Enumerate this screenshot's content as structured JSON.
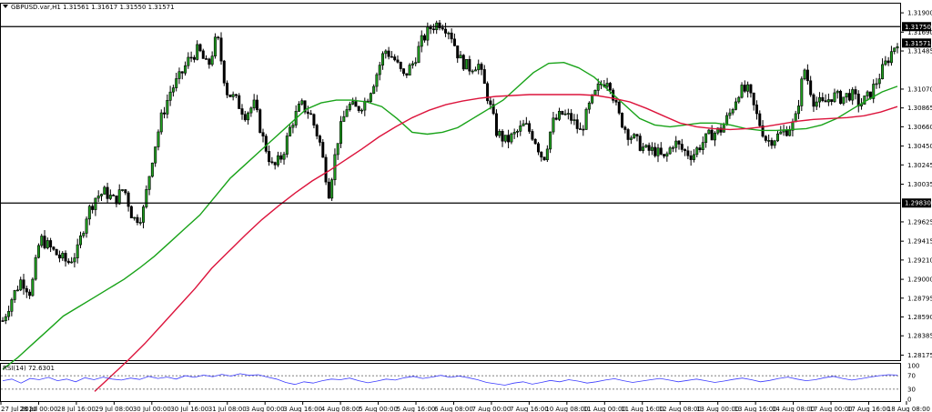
{
  "header": {
    "symbol_line": "GBPUSD.var,H1  1.31561 1.31617 1.31550 1.31571"
  },
  "indicator": {
    "label": "RSI(14) 72.6301"
  },
  "colors": {
    "background": "#ffffff",
    "candle": "#000000",
    "candle_up_body": "#1f9e1f",
    "ma_fast": "#19a319",
    "ma_slow": "#dc143c",
    "rsi_line": "#3b3bff",
    "hline": "#000000"
  },
  "chart_data": {
    "type": "candlestick",
    "price_axis": {
      "ticks": [
        "1.31900",
        "1.31690",
        "1.31485",
        "1.31070",
        "1.30865",
        "1.30660",
        "1.30450",
        "1.30245",
        "1.30035",
        "1.29625",
        "1.29415",
        "1.29210",
        "1.29000",
        "1.28795",
        "1.28590",
        "1.28385",
        "1.28175"
      ],
      "range": [
        1.2812,
        1.32
      ]
    },
    "horizontal_lines": [
      {
        "price": 1.3175,
        "label": "1.31750"
      },
      {
        "price": 1.2983,
        "label": "1.29830"
      }
    ],
    "last_price": {
      "value": 1.31571,
      "label": "1.31571"
    },
    "time_axis": {
      "labels": [
        "27 Jul 2020",
        "28 Jul 00:00",
        "28 Jul 16:00",
        "29 Jul 08:00",
        "30 Jul 00:00",
        "30 Jul 16:00",
        "31 Jul 08:00",
        "3 Aug 00:00",
        "3 Aug 16:00",
        "4 Aug 08:00",
        "5 Aug 00:00",
        "5 Aug 16:00",
        "6 Aug 08:00",
        "7 Aug 00:00",
        "7 Aug 16:00",
        "10 Aug 08:00",
        "11 Aug 00:00",
        "11 Aug 16:00",
        "12 Aug 08:00",
        "13 Aug 00:00",
        "13 Aug 16:00",
        "14 Aug 08:00",
        "17 Aug 00:00",
        "17 Aug 16:00",
        "18 Aug 08:00"
      ]
    },
    "close_path": [
      1.2855,
      1.288,
      1.29,
      1.2885,
      1.2945,
      1.2935,
      1.2925,
      1.2918,
      1.293,
      1.297,
      1.299,
      1.2995,
      1.2985,
      1.3,
      1.2965,
      1.297,
      1.303,
      1.3075,
      1.3105,
      1.312,
      1.314,
      1.315,
      1.313,
      1.3165,
      1.3105,
      1.3095,
      1.308,
      1.309,
      1.305,
      1.302,
      1.3035,
      1.307,
      1.309,
      1.308,
      1.305,
      1.2995,
      1.3055,
      1.309,
      1.3085,
      1.3095,
      1.312,
      1.315,
      1.314,
      1.312,
      1.3135,
      1.316,
      1.3175,
      1.318,
      1.317,
      1.314,
      1.313,
      1.3135,
      1.31,
      1.306,
      1.305,
      1.3058,
      1.3068,
      1.3055,
      1.303,
      1.307,
      1.308,
      1.3075,
      1.306,
      1.309,
      1.311,
      1.312,
      1.308,
      1.306,
      1.305,
      1.304,
      1.304,
      1.303,
      1.305,
      1.304,
      1.3035,
      1.3048,
      1.3058,
      1.3062,
      1.308,
      1.3105,
      1.3105,
      1.3075,
      1.305,
      1.3055,
      1.3062,
      1.307,
      1.313,
      1.3095,
      1.309,
      1.31,
      1.3097,
      1.3102,
      1.309,
      1.31,
      1.312,
      1.314,
      1.316
    ],
    "ma_fast": [
      1.2802,
      1.2815,
      1.283,
      1.2845,
      1.286,
      1.287,
      1.288,
      1.289,
      1.29,
      1.2912,
      1.2925,
      1.294,
      1.2955,
      1.297,
      1.299,
      1.301,
      1.3025,
      1.304,
      1.3055,
      1.307,
      1.3085,
      1.3092,
      1.3095,
      1.3095,
      1.3093,
      1.3088,
      1.3075,
      1.306,
      1.3058,
      1.306,
      1.3065,
      1.3075,
      1.3085,
      1.3095,
      1.311,
      1.3125,
      1.3135,
      1.3136,
      1.313,
      1.312,
      1.3105,
      1.309,
      1.3075,
      1.3068,
      1.3066,
      1.3068,
      1.307,
      1.307,
      1.3068,
      1.3064,
      1.3062,
      1.3062,
      1.3063,
      1.3064,
      1.3068,
      1.3075,
      1.3085,
      1.3095,
      1.3104,
      1.311
    ],
    "ma_slow": [
      1.2778,
      1.2795,
      1.2812,
      1.283,
      1.285,
      1.287,
      1.289,
      1.2912,
      1.293,
      1.2948,
      1.2965,
      1.298,
      1.2994,
      1.3007,
      1.3018,
      1.303,
      1.3042,
      1.3055,
      1.3066,
      1.3076,
      1.3084,
      1.309,
      1.3094,
      1.3097,
      1.3099,
      1.31,
      1.3101,
      1.3101,
      1.3101,
      1.3101,
      1.31,
      1.3097,
      1.3093,
      1.3086,
      1.3078,
      1.307,
      1.3066,
      1.3064,
      1.3063,
      1.3064,
      1.3066,
      1.3069,
      1.3072,
      1.3074,
      1.3075,
      1.3076,
      1.3078,
      1.3082,
      1.3088
    ],
    "rsi": {
      "ticks": [
        "100",
        "70",
        "30",
        "0"
      ],
      "levels": [
        70,
        30
      ],
      "current": 72.6301,
      "values": [
        55,
        60,
        48,
        62,
        58,
        65,
        55,
        60,
        52,
        64,
        58,
        66,
        60,
        57,
        63,
        59,
        68,
        62,
        66,
        60,
        70,
        65,
        72,
        67,
        74,
        69,
        76,
        71,
        73,
        66,
        60,
        50,
        44,
        52,
        48,
        55,
        60,
        58,
        63,
        55,
        49,
        54,
        60,
        57,
        64,
        68,
        62,
        66,
        71,
        65,
        69,
        64,
        58,
        50,
        46,
        42,
        48,
        52,
        45,
        50,
        56,
        52,
        58,
        54,
        48,
        52,
        57,
        61,
        55,
        50,
        54,
        58,
        62,
        57,
        52,
        56,
        60,
        55,
        50,
        54,
        59,
        63,
        58,
        52,
        56,
        62,
        66,
        60,
        55,
        58,
        64,
        68,
        62,
        57,
        61,
        66,
        70,
        73,
        72
      ]
    }
  }
}
